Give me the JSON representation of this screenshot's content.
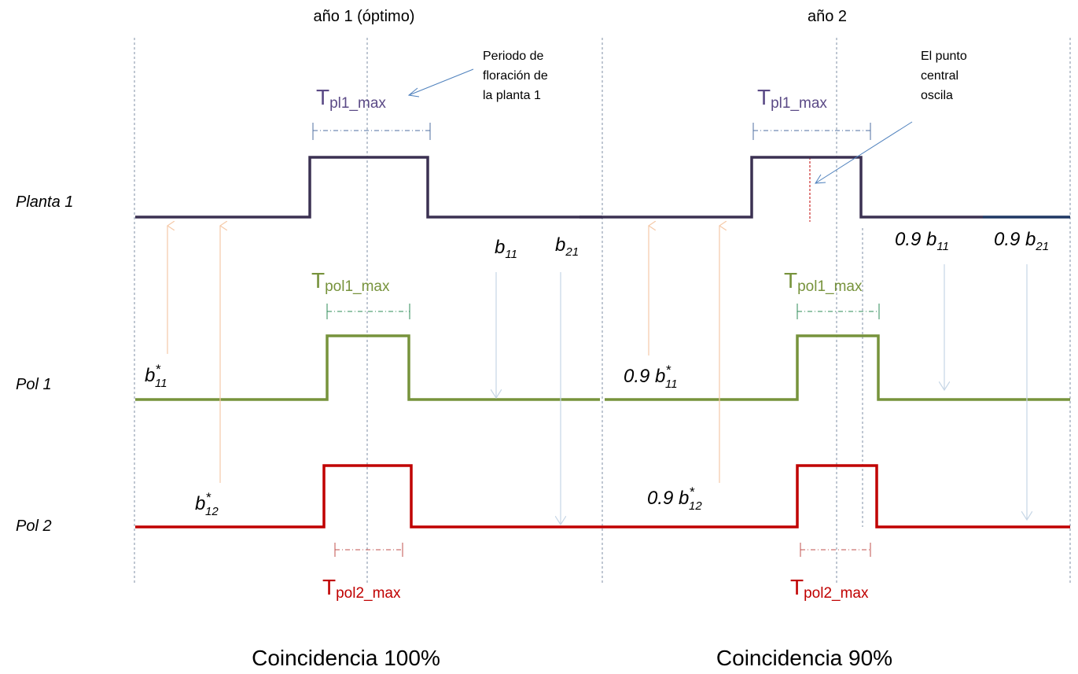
{
  "headers": {
    "year1": "año 1 (óptimo)",
    "year2": "año 2"
  },
  "rows": {
    "plant1": "Planta 1",
    "pol1": "Pol 1",
    "pol2": "Pol 2"
  },
  "periods": {
    "pl1_main": "T",
    "pl1_sub": "pl1_max",
    "pol1_main": "T",
    "pol1_sub": "pol1_max",
    "pol2_main": "T",
    "pol2_sub": "pol2_max"
  },
  "notes": {
    "flowering_l1": "Periodo de",
    "flowering_l2": "floración de",
    "flowering_l3": "la planta 1",
    "osc_l1": "El punto",
    "osc_l2": "central",
    "osc_l3": "oscila"
  },
  "params": {
    "b": "b",
    "s11": "11",
    "s21": "21",
    "s12": "12",
    "star": "*",
    "factor": "0.9 b"
  },
  "footer": {
    "left": "Coincidencia 100%",
    "right": "Coincidencia 90%"
  },
  "colors": {
    "plant": "#3b3152",
    "pol1": "#77933c",
    "pol2": "#c00000",
    "arrow_up": "#f5c9a8",
    "arrow_down": "#c6d6e6",
    "pointer": "#4f81bd",
    "guide": "#7f8fa6"
  }
}
